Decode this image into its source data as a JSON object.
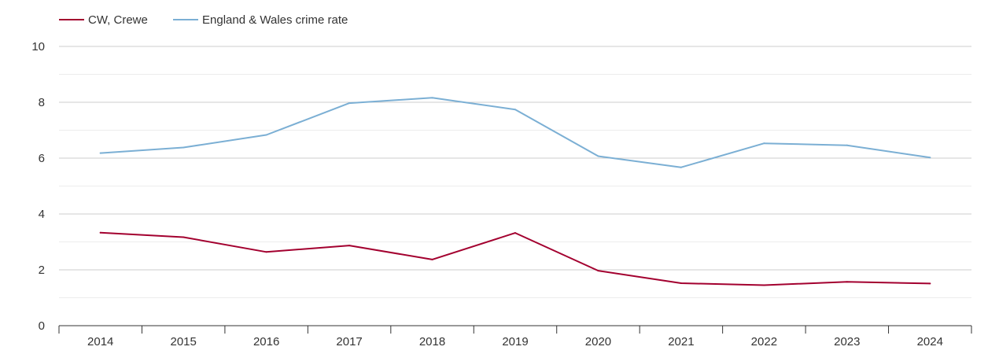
{
  "chart_data": {
    "type": "line",
    "title": "",
    "xlabel": "",
    "ylabel": "",
    "x": [
      "2014",
      "2015",
      "2016",
      "2017",
      "2018",
      "2019",
      "2020",
      "2021",
      "2022",
      "2023",
      "2024"
    ],
    "ylim": [
      0,
      10
    ],
    "yticks": [
      "0",
      "2",
      "4",
      "6",
      "8",
      "10"
    ],
    "grid": true,
    "legend_position": "top-left",
    "series": [
      {
        "name": "CW, Crewe",
        "color": "#a3002f",
        "values": [
          3.33,
          3.17,
          2.64,
          2.87,
          2.37,
          3.32,
          1.97,
          1.52,
          1.45,
          1.57,
          1.51
        ]
      },
      {
        "name": "England & Wales crime rate",
        "color": "#7bafd4",
        "values": [
          6.18,
          6.38,
          6.83,
          7.97,
          8.16,
          7.74,
          6.07,
          5.67,
          6.53,
          6.46,
          6.02
        ]
      }
    ]
  }
}
